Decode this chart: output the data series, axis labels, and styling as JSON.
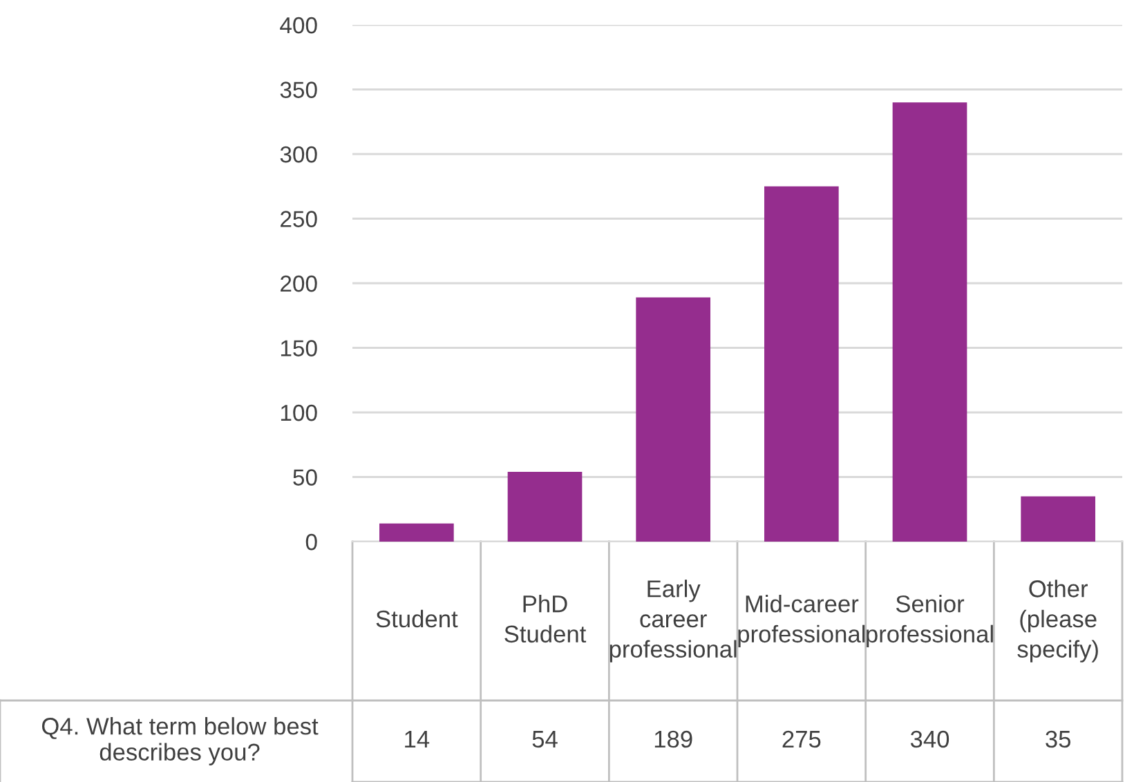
{
  "chart_data": {
    "type": "bar",
    "categories": [
      "Student",
      "PhD Student",
      "Early career professional",
      "Mid-career professional",
      "Senior professional",
      "Other (please specify)"
    ],
    "series": [
      {
        "name": "Q4. What term below best describes you?",
        "color": "#952d8e",
        "values": [
          14,
          54,
          189,
          275,
          340,
          35
        ]
      }
    ],
    "ylim": [
      0,
      400
    ],
    "yticks": [
      0,
      50,
      100,
      150,
      200,
      250,
      300,
      350,
      400
    ],
    "grid": "y",
    "legend": false,
    "data_labels": true
  }
}
